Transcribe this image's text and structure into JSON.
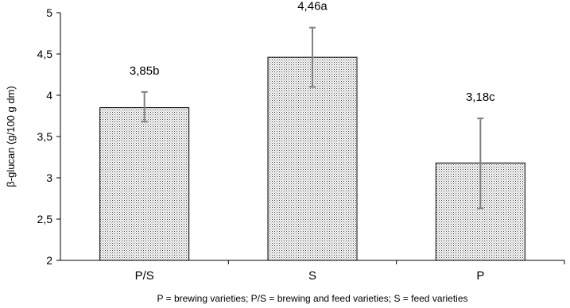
{
  "chart_data": {
    "type": "bar",
    "categories": [
      "P/S",
      "S",
      "P"
    ],
    "values": [
      3.85,
      4.46,
      3.18
    ],
    "error_bars": [
      [
        3.68,
        4.04
      ],
      [
        4.1,
        4.82
      ],
      [
        2.63,
        3.72
      ]
    ],
    "data_labels": [
      "3,85b",
      "4,46a",
      "3,18c"
    ],
    "ylabel": "β-glucan (g/100 g dm)",
    "xlabel": "",
    "ylim": [
      2,
      5
    ],
    "yticks": [
      2,
      2.5,
      3,
      3.5,
      4,
      4.5,
      5
    ],
    "ytick_labels": [
      "2",
      "2,5",
      "3",
      "3,5",
      "4",
      "4,5",
      "5"
    ],
    "grid": false,
    "bar_fill": "dotted",
    "error_bar_color": "#808080",
    "footnote": "P = brewing varieties; P/S = brewing and feed varieties; S = feed varieties"
  }
}
